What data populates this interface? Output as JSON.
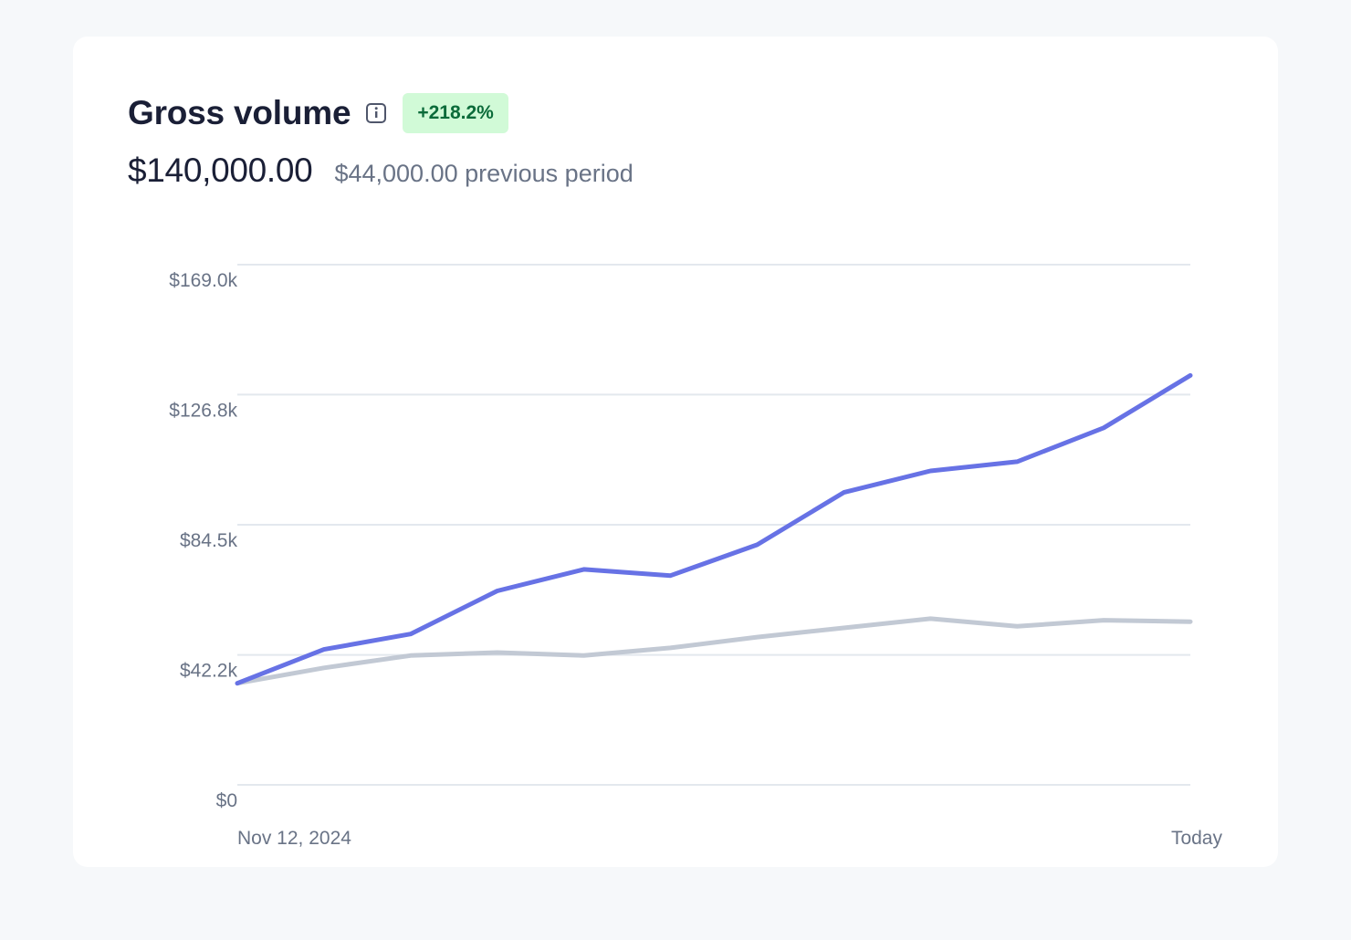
{
  "header": {
    "title": "Gross volume",
    "info_icon": "info-icon",
    "change_badge": "+218.2%"
  },
  "summary": {
    "amount": "$140,000.00",
    "previous_amount": "$44,000.00",
    "previous_label": "previous period"
  },
  "colors": {
    "current": "#6772e5",
    "previous": "#c2c9d4",
    "grid": "#e3e8ee",
    "badge_bg": "#d1fad7",
    "badge_text": "#0b6b3a"
  },
  "chart_data": {
    "type": "line",
    "x_start_label": "Nov 12, 2024",
    "x_end_label": "Today",
    "yticks": [
      "$0",
      "$42.2k",
      "$84.5k",
      "$126.8k",
      "$169.0k"
    ],
    "ytick_values": [
      0,
      42200,
      84500,
      126800,
      169000
    ],
    "ylim": [
      0,
      169000
    ],
    "grid": true,
    "series": [
      {
        "name": "",
        "role": "current",
        "values": [
          33000,
          44000,
          49000,
          63000,
          70000,
          68000,
          78000,
          95000,
          102000,
          105000,
          116000,
          133000
        ]
      },
      {
        "name": "",
        "role": "previous",
        "values": [
          33000,
          38000,
          42000,
          43000,
          42000,
          44500,
          48000,
          51000,
          54000,
          51500,
          53500,
          53000
        ]
      }
    ]
  }
}
